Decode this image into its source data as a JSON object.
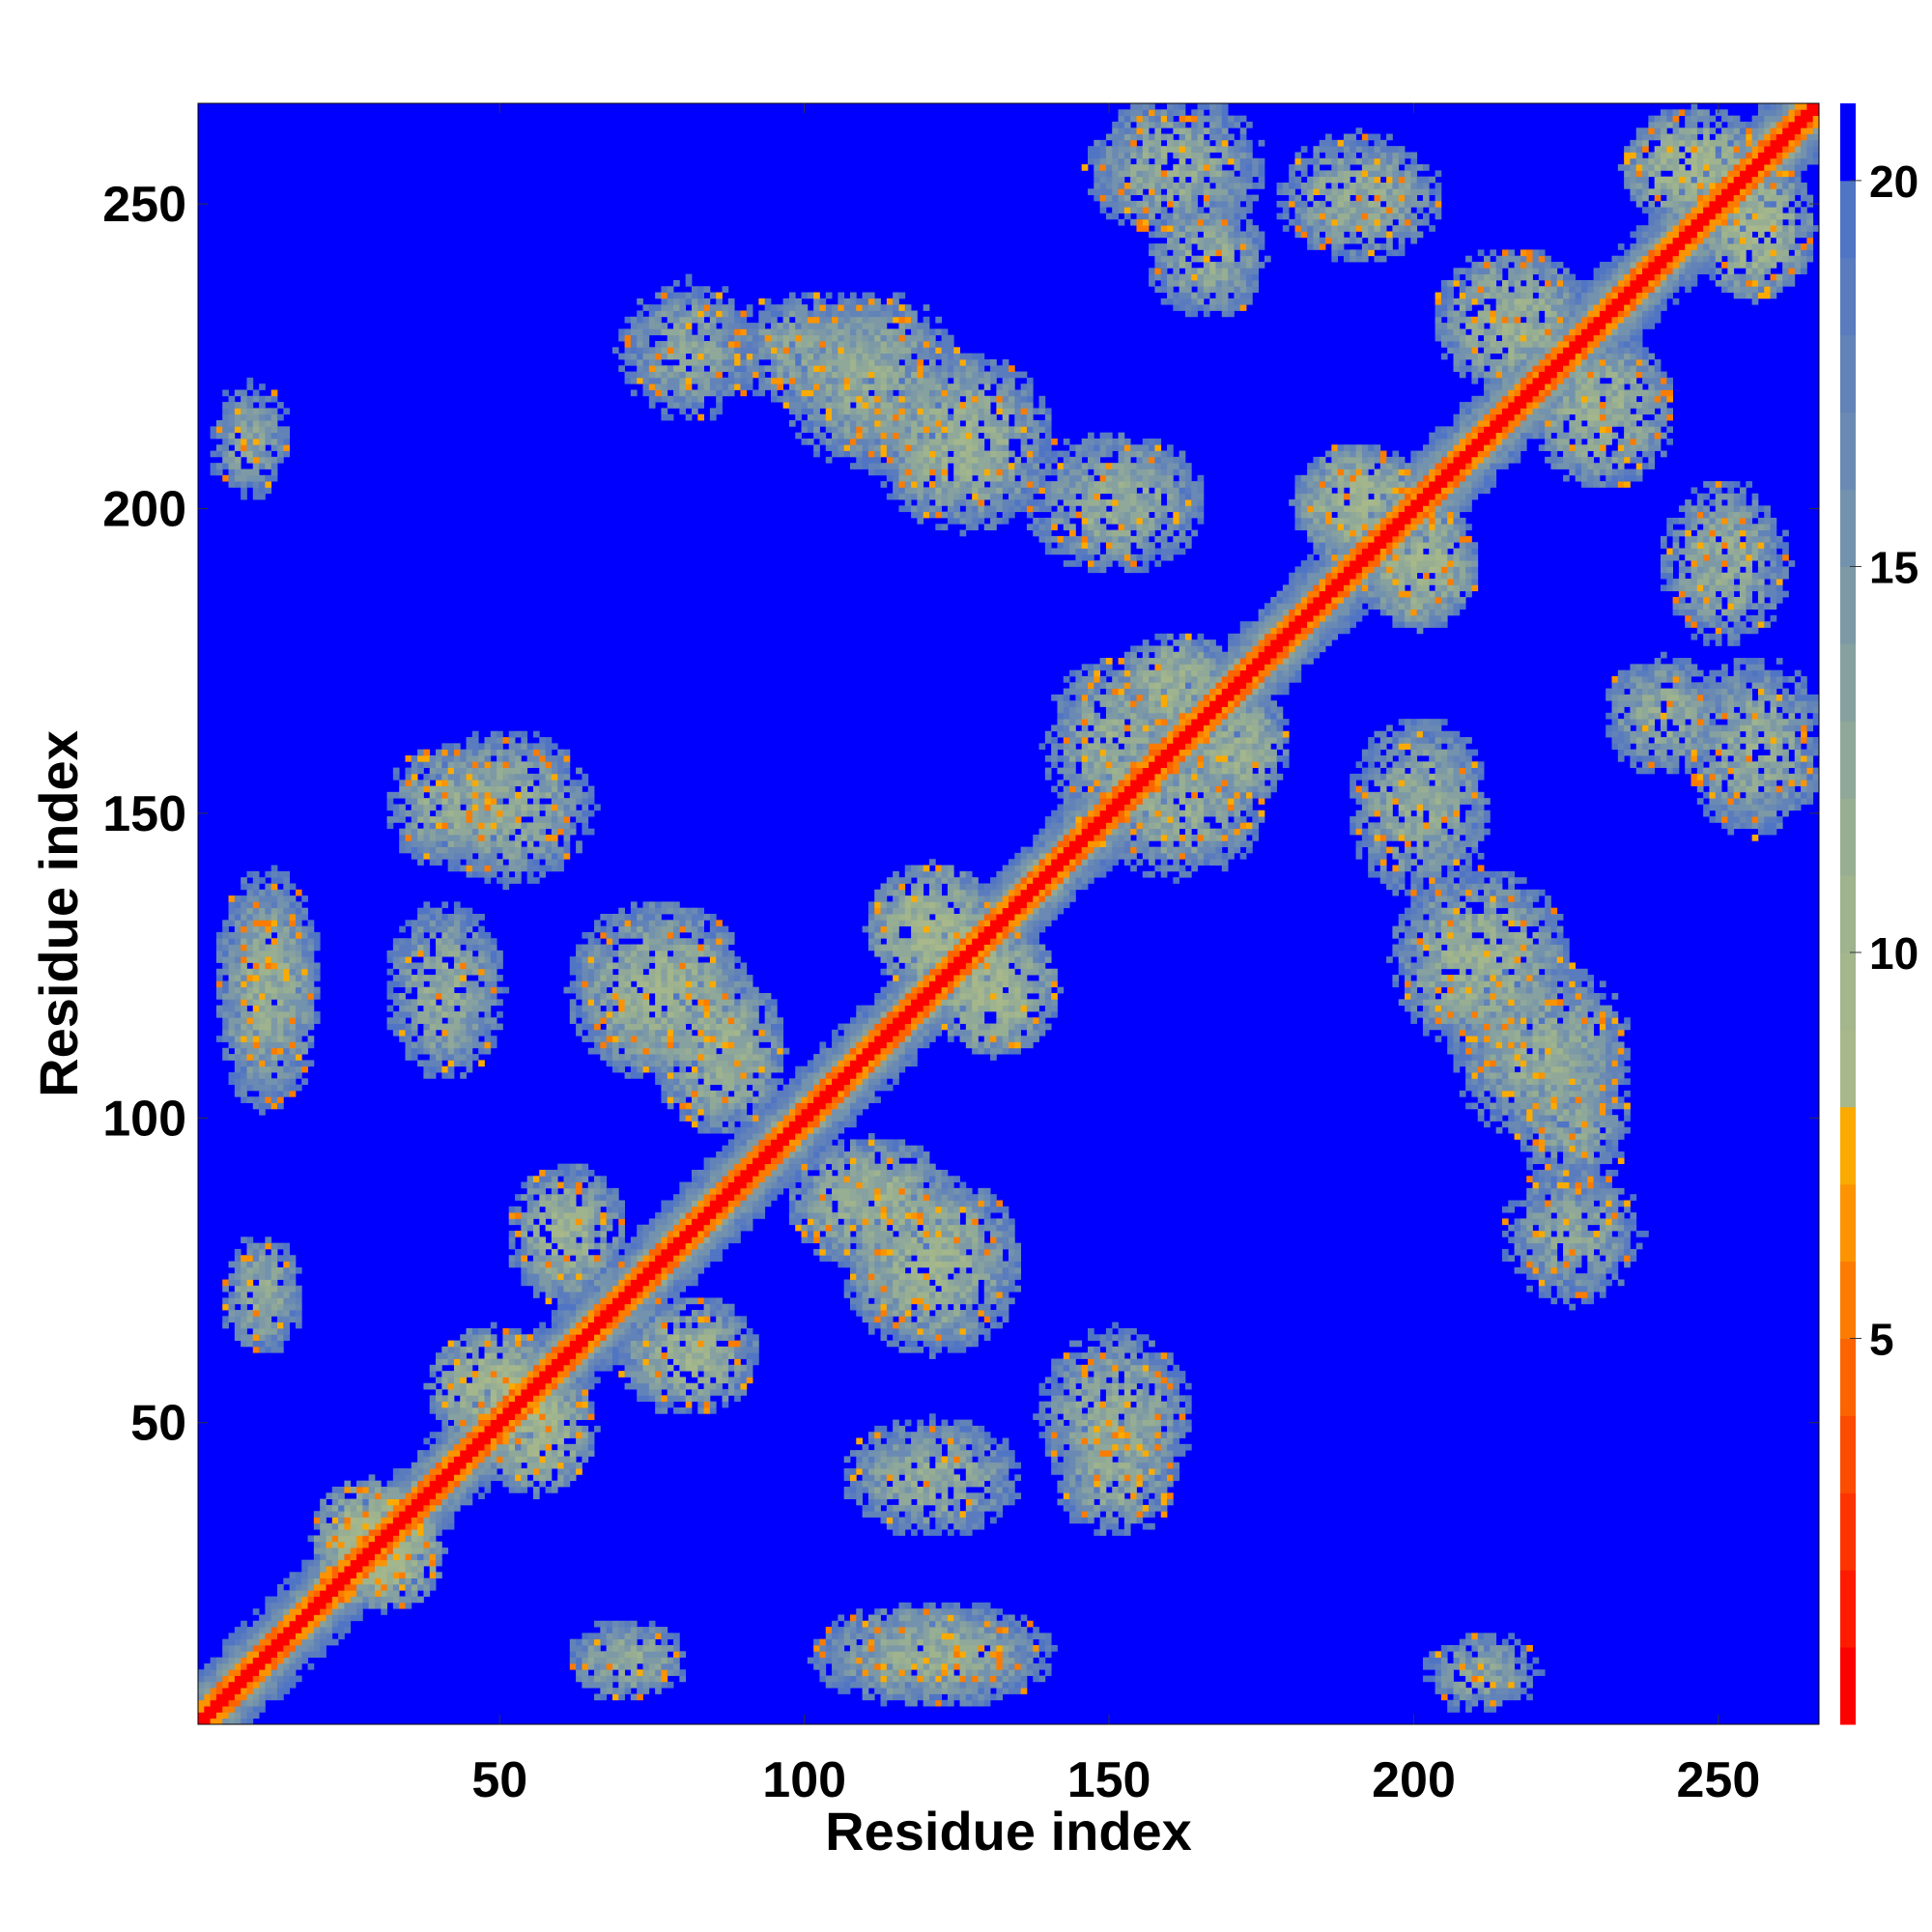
{
  "chart_data": {
    "type": "heatmap",
    "title": "",
    "xlabel": "Residue index",
    "ylabel": "Residue index",
    "n_residues": 266,
    "xlim": [
      1,
      266
    ],
    "ylim": [
      1,
      266
    ],
    "x_ticks": [
      50,
      100,
      150,
      200,
      250
    ],
    "y_ticks": [
      50,
      100,
      150,
      200,
      250
    ],
    "x_tick_labels": [
      "50",
      "100",
      "150",
      "200",
      "250"
    ],
    "y_tick_labels": [
      "50",
      "100",
      "150",
      "200",
      "250"
    ],
    "grid": false,
    "colorbar": {
      "position": "right",
      "range": [
        0,
        21
      ],
      "ticks": [
        5,
        10,
        15,
        20
      ],
      "tick_labels": [
        "5",
        "10",
        "15",
        "20"
      ],
      "levels": [
        {
          "upper": 1,
          "color": "#ff0000"
        },
        {
          "upper": 2,
          "color": "#fe1b00"
        },
        {
          "upper": 3,
          "color": "#fd3400"
        },
        {
          "upper": 4,
          "color": "#fc4c00"
        },
        {
          "upper": 5,
          "color": "#fb6400"
        },
        {
          "upper": 6,
          "color": "#fb7c00"
        },
        {
          "upper": 7,
          "color": "#fb9400"
        },
        {
          "upper": 8,
          "color": "#fbab00"
        },
        {
          "upper": 9,
          "color": "#a8b88a"
        },
        {
          "upper": 10,
          "color": "#a3b68c"
        },
        {
          "upper": 11,
          "color": "#9eb38e"
        },
        {
          "upper": 12,
          "color": "#97ae93"
        },
        {
          "upper": 13,
          "color": "#8fa899"
        },
        {
          "upper": 14,
          "color": "#86a19f"
        },
        {
          "upper": 15,
          "color": "#7d99a6"
        },
        {
          "upper": 16,
          "color": "#7392ad"
        },
        {
          "upper": 17,
          "color": "#6a8ab3"
        },
        {
          "upper": 18,
          "color": "#6283b8"
        },
        {
          "upper": 19,
          "color": "#5a7cbe"
        },
        {
          "upper": 20,
          "color": "#5075c4"
        },
        {
          "upper": 21,
          "color": "#0000ff"
        }
      ]
    },
    "description_matrix": "symmetric pairwise residue distance map (values in 0-21, capped at 21 = blue); strong diagonal band, helix-like off-diagonal stripes and contact patches",
    "features": [
      {
        "kind": "diagonal",
        "width": 10
      },
      {
        "kind": "patch",
        "center": [
          48,
          55
        ],
        "size": [
          22,
          20
        ],
        "value": 10
      },
      {
        "kind": "patch",
        "center": [
          28,
          30
        ],
        "size": [
          20,
          20
        ],
        "value": 9
      },
      {
        "kind": "patch",
        "center": [
          80,
          60
        ],
        "size": [
          24,
          20
        ],
        "value": 11
      },
      {
        "kind": "patch",
        "center": [
          110,
          85
        ],
        "size": [
          28,
          22
        ],
        "value": 11
      },
      {
        "kind": "patch",
        "center": [
          130,
          120
        ],
        "size": [
          22,
          22
        ],
        "value": 10
      },
      {
        "kind": "patch",
        "center": [
          160,
          170
        ],
        "size": [
          20,
          18
        ],
        "value": 11
      },
      {
        "kind": "patch",
        "center": [
          200,
          190
        ],
        "size": [
          20,
          22
        ],
        "value": 10
      },
      {
        "kind": "patch",
        "center": [
          215,
          230
        ],
        "size": [
          26,
          24
        ],
        "value": 11
      },
      {
        "kind": "patch",
        "center": [
          245,
          255
        ],
        "size": [
          24,
          20
        ],
        "value": 10
      },
      {
        "kind": "patch",
        "center": [
          10,
          120
        ],
        "size": [
          16,
          40
        ],
        "value": 12
      },
      {
        "kind": "patch",
        "center": [
          10,
          70
        ],
        "size": [
          14,
          20
        ],
        "value": 12
      },
      {
        "kind": "patch",
        "center": [
          8,
          210
        ],
        "size": [
          14,
          20
        ],
        "value": 13
      },
      {
        "kind": "patch",
        "center": [
          50,
          150
        ],
        "size": [
          30,
          26
        ],
        "value": 12
      },
      {
        "kind": "patch",
        "center": [
          75,
          120
        ],
        "size": [
          30,
          30
        ],
        "value": 11
      },
      {
        "kind": "patch",
        "center": [
          120,
          40
        ],
        "size": [
          30,
          20
        ],
        "value": 12
      },
      {
        "kind": "patch",
        "center": [
          120,
          12
        ],
        "size": [
          40,
          16
        ],
        "value": 12
      },
      {
        "kind": "patch",
        "center": [
          150,
          40
        ],
        "size": [
          20,
          20
        ],
        "value": 12
      },
      {
        "kind": "patch",
        "center": [
          125,
          210
        ],
        "size": [
          30,
          30
        ],
        "value": 11
      },
      {
        "kind": "patch",
        "center": [
          160,
          150
        ],
        "size": [
          30,
          24
        ],
        "value": 12
      },
      {
        "kind": "patch",
        "center": [
          190,
          250
        ],
        "size": [
          28,
          22
        ],
        "value": 12
      },
      {
        "kind": "patch",
        "center": [
          200,
          150
        ],
        "size": [
          24,
          30
        ],
        "value": 12
      },
      {
        "kind": "patch",
        "center": [
          220,
          110
        ],
        "size": [
          30,
          30
        ],
        "value": 12
      },
      {
        "kind": "patch",
        "center": [
          225,
          80
        ],
        "size": [
          24,
          24
        ],
        "value": 13
      },
      {
        "kind": "patch",
        "center": [
          255,
          160
        ],
        "size": [
          24,
          30
        ],
        "value": 12
      },
      {
        "kind": "patch",
        "center": [
          100,
          225
        ],
        "size": [
          30,
          20
        ],
        "value": 13
      },
      {
        "kind": "patch",
        "center": [
          165,
          240
        ],
        "size": [
          20,
          20
        ],
        "value": 12
      }
    ]
  }
}
